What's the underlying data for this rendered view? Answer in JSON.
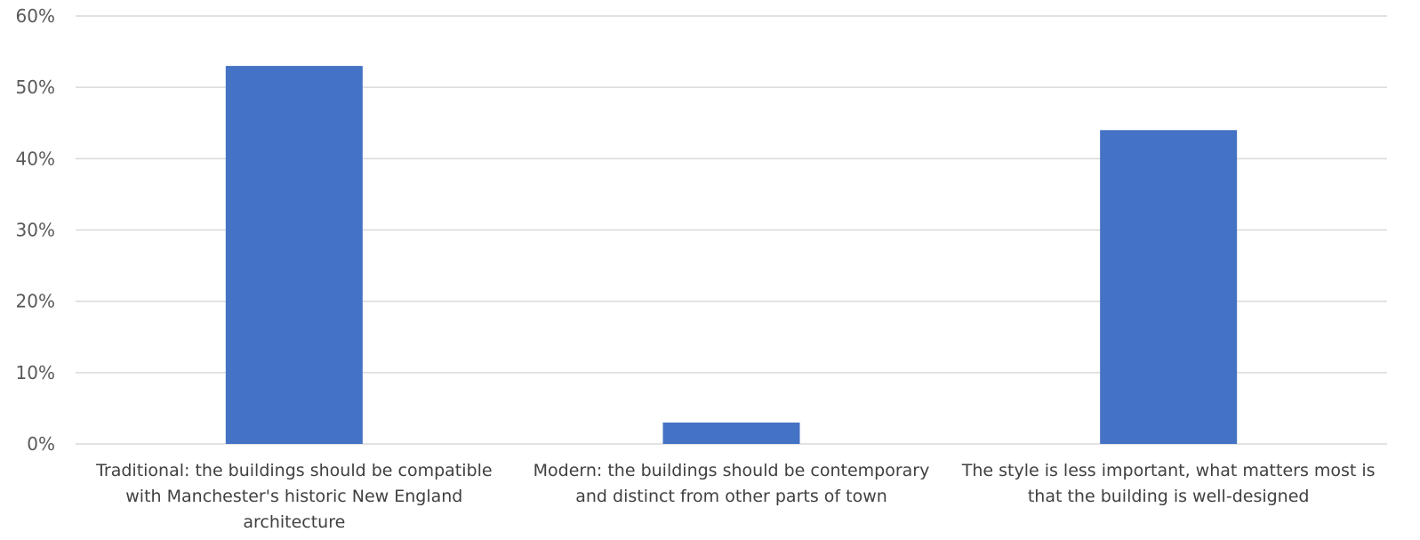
{
  "chart_data": {
    "type": "bar",
    "title": "",
    "xlabel": "",
    "ylabel": "",
    "categories": [
      "Traditional: the buildings should be compatible with Manchester's historic New England architecture",
      "Modern: the buildings should be contemporary and distinct from other parts of town",
      "The style is less important, what matters most is that the building is well-designed"
    ],
    "category_lines": [
      [
        "Traditional: the buildings should be compatible",
        "with Manchester's historic New England",
        "architecture"
      ],
      [
        "Modern: the buildings should be contemporary",
        "and distinct from other parts of town"
      ],
      [
        "The style is less important, what matters most is",
        "that the building is well-designed"
      ]
    ],
    "values": [
      53,
      3,
      44
    ],
    "ylim": [
      0,
      60
    ],
    "yticks": [
      0,
      10,
      20,
      30,
      40,
      50,
      60
    ],
    "ytick_labels": [
      "0%",
      "10%",
      "20%",
      "30%",
      "40%",
      "50%",
      "60%"
    ],
    "grid": true,
    "legend": "none",
    "bar_color": "#4472c4"
  }
}
